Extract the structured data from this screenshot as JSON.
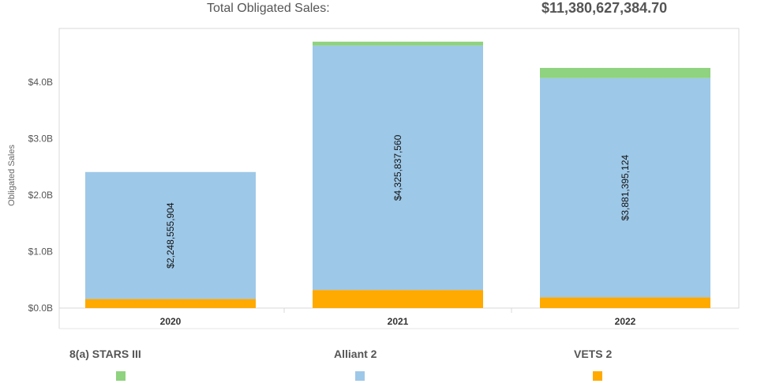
{
  "summary": {
    "label": "Total Obligated Sales:",
    "value": "$11,380,627,384.70"
  },
  "colors": {
    "8(a) STARS III": "#8fd27f",
    "Alliant 2": "#9ec8e8",
    "VETS 2": "#ffaa00"
  },
  "chart_data": {
    "type": "bar",
    "stacked": true,
    "categories": [
      "2020",
      "2021",
      "2022"
    ],
    "ylabel": "Obligated Sales",
    "xlabel": "",
    "ylim": [
      0,
      4.95
    ],
    "yticks": [
      "$0.0B",
      "$1.0B",
      "$2.0B",
      "$3.0B",
      "$4.0B"
    ],
    "ytick_values": [
      0,
      1,
      2,
      3,
      4
    ],
    "grid": false,
    "series": [
      {
        "name": "VETS 2",
        "values": [
          0.16,
          0.32,
          0.19
        ]
      },
      {
        "name": "Alliant 2",
        "values": [
          2.248555904,
          4.32583756,
          3.881395124
        ],
        "labels": [
          "$2,248,555,904",
          "$4,325,837,560",
          "$3,881,395,124"
        ]
      },
      {
        "name": "8(a) STARS III",
        "values": [
          0,
          0.07,
          0.18
        ]
      }
    ]
  },
  "legend": {
    "items": [
      {
        "label": "8(a) STARS III",
        "color": "#8fd27f"
      },
      {
        "label": "Alliant 2",
        "color": "#9ec8e8"
      },
      {
        "label": "VETS 2",
        "color": "#ffaa00"
      }
    ]
  }
}
